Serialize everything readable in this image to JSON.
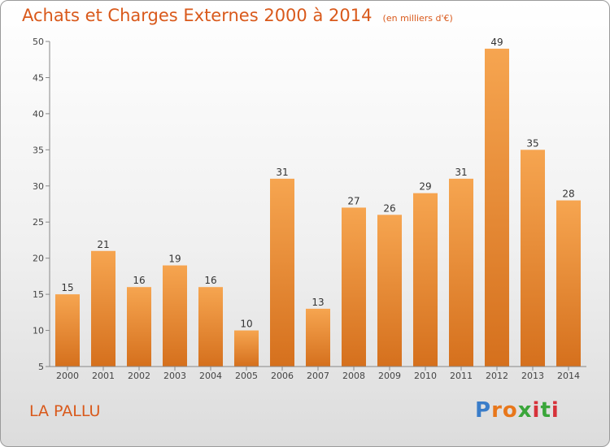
{
  "header": {
    "title": "Achats et Charges Externes 2000 à 2014",
    "subtitle": "(en milliers d'€)"
  },
  "footer": {
    "commune": "LA PALLU",
    "logo_text": "Proxiti",
    "logo_colors": [
      "#3a7dc9",
      "#e8771b",
      "#e8771b",
      "#3aa63a",
      "#d6323a",
      "#3aa63a",
      "#d6323a"
    ]
  },
  "colors": {
    "accent": "#d9591b",
    "bar_top": "#f6a550",
    "bar_bottom": "#d5701d"
  },
  "chart_data": {
    "type": "bar",
    "categories": [
      "2000",
      "2001",
      "2002",
      "2003",
      "2004",
      "2005",
      "2006",
      "2007",
      "2008",
      "2009",
      "2010",
      "2011",
      "2012",
      "2013",
      "2014"
    ],
    "values": [
      15,
      21,
      16,
      19,
      16,
      10,
      31,
      13,
      27,
      26,
      29,
      31,
      49,
      35,
      28
    ],
    "data_labels": [
      "15",
      "21",
      "16",
      "19",
      "16",
      "10",
      "31",
      "13",
      "27",
      "26",
      "29",
      "31",
      "49",
      "35",
      "28"
    ],
    "title": "Achats et Charges Externes 2000 à 2014",
    "xlabel": "",
    "ylabel": "",
    "ylim": [
      5,
      50
    ],
    "yticks": [
      "5",
      "10",
      "15",
      "20",
      "25",
      "30",
      "35",
      "40",
      "45",
      "50"
    ],
    "grid": false,
    "legend": "none"
  }
}
